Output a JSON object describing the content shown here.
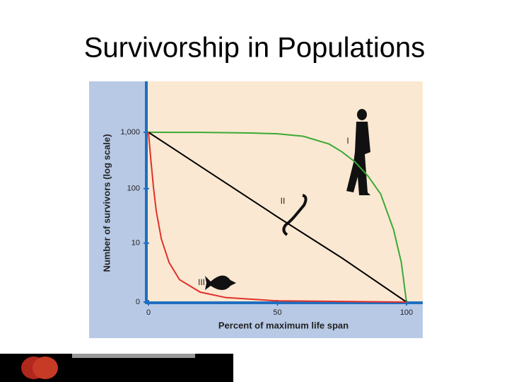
{
  "chart_data": {
    "type": "line",
    "title": "Survivorship in Populations",
    "xlabel": "Percent of maximum life span",
    "ylabel": "Number of survivors (log scale)",
    "yscale": "symlog",
    "xlim": [
      0,
      100
    ],
    "ylim": [
      0,
      1000
    ],
    "xticks": [
      0,
      50,
      100
    ],
    "yticks": [
      0,
      10,
      100,
      {
        "value": 1000,
        "label": "1,000"
      }
    ],
    "series": [
      {
        "name": "I",
        "color": "#3aaa35",
        "x": [
          0,
          20,
          40,
          50,
          60,
          70,
          75,
          80,
          85,
          90,
          95,
          98,
          100
        ],
        "values": [
          1000,
          995,
          970,
          940,
          850,
          620,
          450,
          300,
          170,
          80,
          18,
          4,
          0
        ]
      },
      {
        "name": "II",
        "color": "#000000",
        "x": [
          0,
          25,
          50,
          75,
          100
        ],
        "values": [
          1000,
          178,
          31,
          5,
          0
        ]
      },
      {
        "name": "III",
        "color": "#e0302a",
        "x": [
          0,
          1,
          2,
          3,
          5,
          8,
          12,
          20,
          30,
          50,
          100
        ],
        "values": [
          1000,
          300,
          100,
          40,
          12,
          4,
          1.5,
          0.5,
          0.2,
          0.05,
          0
        ]
      }
    ]
  }
}
